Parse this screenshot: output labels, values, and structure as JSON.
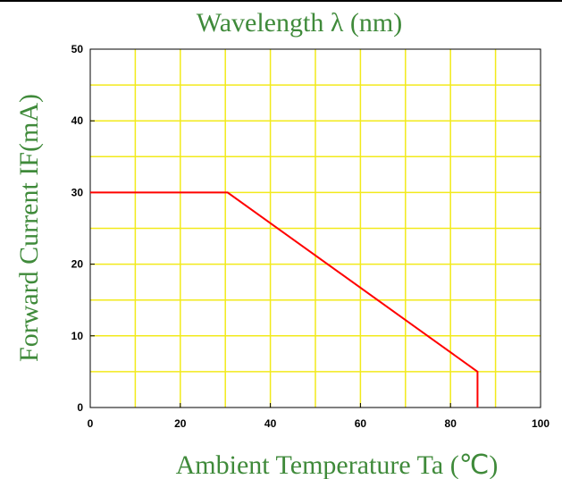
{
  "colors": {
    "grid": "#f2ea1b",
    "curve": "#ff0000",
    "label_green": "#3f8a3a",
    "axis": "#000000",
    "plot_bg": "#ffffff"
  },
  "chart_data": {
    "type": "line",
    "title": "Wavelength λ (nm)",
    "xlabel": "Ambient Temperature Ta (℃)",
    "ylabel": "Forward Current IF(mA)",
    "xlim": [
      0,
      100
    ],
    "ylim": [
      0,
      50
    ],
    "x_ticks": [
      "0",
      "20",
      "40",
      "60",
      "80",
      "100"
    ],
    "y_ticks": [
      "0",
      "10",
      "20",
      "30",
      "40",
      "50"
    ],
    "grid": true,
    "series": [
      {
        "x": [
          0,
          30.5,
          86,
          86
        ],
        "y": [
          30,
          30,
          5,
          0
        ]
      }
    ]
  }
}
